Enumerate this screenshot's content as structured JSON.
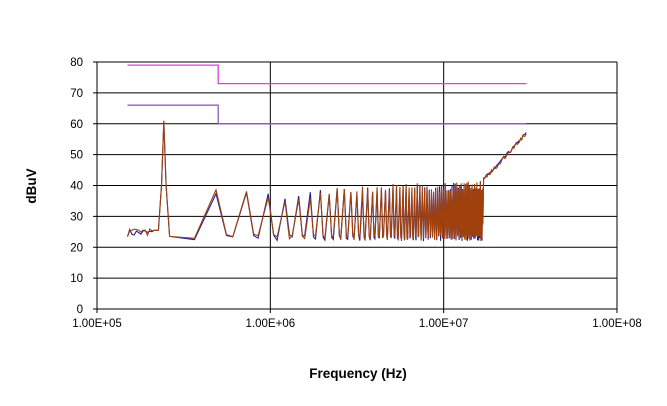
{
  "chart_data": {
    "type": "line",
    "title": "",
    "xlabel": "Frequency (Hz)",
    "ylabel": "dBuV",
    "x_scale": "log",
    "xlim": [
      100000,
      100000000
    ],
    "ylim": [
      0,
      80
    ],
    "x_ticks": [
      "1.00E+05",
      "1.00E+06",
      "1.00E+07",
      "1.00E+08"
    ],
    "y_ticks": [
      "0",
      "10",
      "20",
      "30",
      "40",
      "50",
      "60",
      "70",
      "80"
    ],
    "grid": true,
    "legend": "none",
    "colors": {
      "upper_limit": "#e040e0",
      "lower_limit": "#8a5cc8",
      "trace_a": "#1f1f9e",
      "trace_b": "#a0410d"
    },
    "limit_lines": [
      {
        "points": [
          [
            150000,
            79
          ],
          [
            500000,
            79
          ],
          [
            500000,
            73
          ],
          [
            30000000,
            73
          ]
        ]
      },
      {
        "points": [
          [
            150000,
            66
          ],
          [
            500000,
            66
          ],
          [
            500000,
            60
          ],
          [
            30000000,
            60
          ]
        ]
      }
    ],
    "trace": {
      "baseline_dbuv": 23.5,
      "fundamental_hz": 243000,
      "peaks": [
        [
          250000,
          61
        ],
        [
          500000,
          37
        ],
        [
          750000,
          39.5
        ],
        [
          1000000,
          36
        ],
        [
          1250000,
          36
        ],
        [
          1500000,
          36.5
        ],
        [
          1750000,
          37
        ],
        [
          2000000,
          38
        ],
        [
          3000000,
          38
        ],
        [
          5000000,
          39
        ],
        [
          10000000,
          39.5
        ],
        [
          16000000,
          40
        ]
      ],
      "end_points": [
        [
          17000000,
          42
        ],
        [
          20000000,
          46
        ],
        [
          25000000,
          52
        ],
        [
          30000000,
          57
        ]
      ]
    }
  }
}
